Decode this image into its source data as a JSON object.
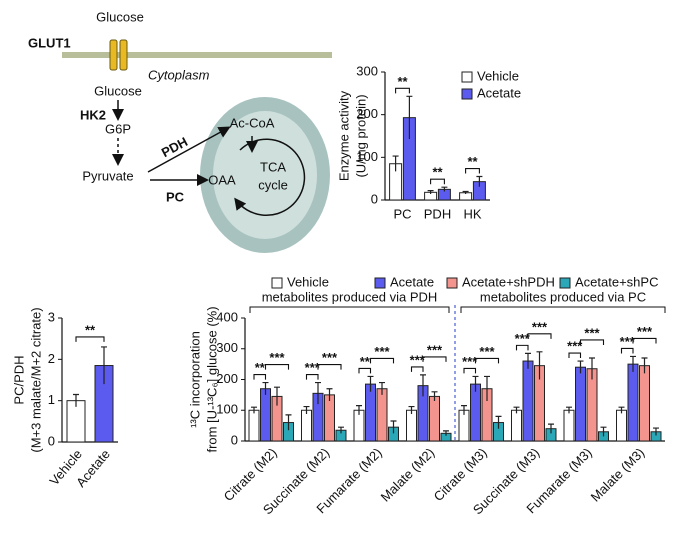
{
  "diagram": {
    "labels": [
      "Glucose",
      "GLUT1",
      "Cytoplasm",
      "Glucose",
      "HK2",
      "G6P",
      "Pyruvate",
      "PDH",
      "PC",
      "OAA",
      "Ac-CoA",
      "TCA",
      "cycle"
    ]
  },
  "chart_data": [
    {
      "type": "bar",
      "ylabel": [
        "Enzyme activity",
        "(U/mg protein)"
      ],
      "categories": [
        "PC",
        "PDH",
        "HK"
      ],
      "series": [
        {
          "name": "Vehicle",
          "color": "#ffffff",
          "values": [
            85,
            18,
            17
          ],
          "errors": [
            18,
            4,
            3
          ]
        },
        {
          "name": "Acetate",
          "color": "#5b5bf0",
          "values": [
            193,
            25,
            43
          ],
          "errors": [
            50,
            5,
            12
          ]
        }
      ],
      "ylim": [
        0,
        300
      ],
      "yticks": [
        0,
        100,
        200,
        300
      ],
      "annotations": [
        "**",
        "**",
        "**"
      ]
    },
    {
      "type": "bar",
      "ylabel": [
        "PC/PDH",
        "(M+3 malate/M+2 citrate)"
      ],
      "categories": [
        "Vehicle",
        "Acetate"
      ],
      "values": [
        1.0,
        1.85
      ],
      "errors": [
        0.15,
        0.45
      ],
      "colors": [
        "#ffffff",
        "#5b5bf0"
      ],
      "ylim": [
        0,
        3
      ],
      "yticks": [
        0,
        1,
        2,
        3
      ],
      "annotations": [
        "**"
      ]
    },
    {
      "type": "bar",
      "ylabel": [
        "¹³C incorporation",
        "from [U-¹³C₆] glucose (%)"
      ],
      "categories": [
        "Citrate (M2)",
        "Succinate (M2)",
        "Fumarate (M2)",
        "Malate (M2)",
        "Citrate (M3)",
        "Succinate (M3)",
        "Fumarate (M3)",
        "Malate (M3)"
      ],
      "series": [
        {
          "name": "Vehicle",
          "color": "#ffffff",
          "values": [
            100,
            100,
            100,
            100,
            100,
            100,
            100,
            100
          ],
          "errors": [
            10,
            12,
            15,
            12,
            15,
            10,
            10,
            10
          ]
        },
        {
          "name": "Acetate",
          "color": "#5b5bf0",
          "values": [
            170,
            155,
            185,
            180,
            185,
            260,
            240,
            250
          ],
          "errors": [
            20,
            35,
            25,
            35,
            25,
            25,
            20,
            25
          ]
        },
        {
          "name": "Acetate+shPDH",
          "color": "#f4948f",
          "values": [
            145,
            150,
            170,
            145,
            170,
            245,
            235,
            245
          ],
          "errors": [
            30,
            20,
            20,
            15,
            40,
            45,
            35,
            25
          ]
        },
        {
          "name": "Acetate+shPC",
          "color": "#2aa8b8",
          "values": [
            60,
            35,
            45,
            25,
            60,
            40,
            30,
            30
          ],
          "errors": [
            25,
            10,
            20,
            8,
            20,
            15,
            15,
            12
          ]
        }
      ],
      "ylim": [
        0,
        400
      ],
      "yticks": [
        0,
        100,
        200,
        300,
        400
      ],
      "group_labels": [
        "metabolites produced via PDH",
        "metabolites produced via PC"
      ],
      "annotations": [
        "**",
        "***",
        "***",
        "***",
        "**",
        "***",
        "***",
        "***",
        "***",
        "***",
        "***",
        "***",
        "***",
        "***",
        "***",
        "***"
      ]
    }
  ]
}
